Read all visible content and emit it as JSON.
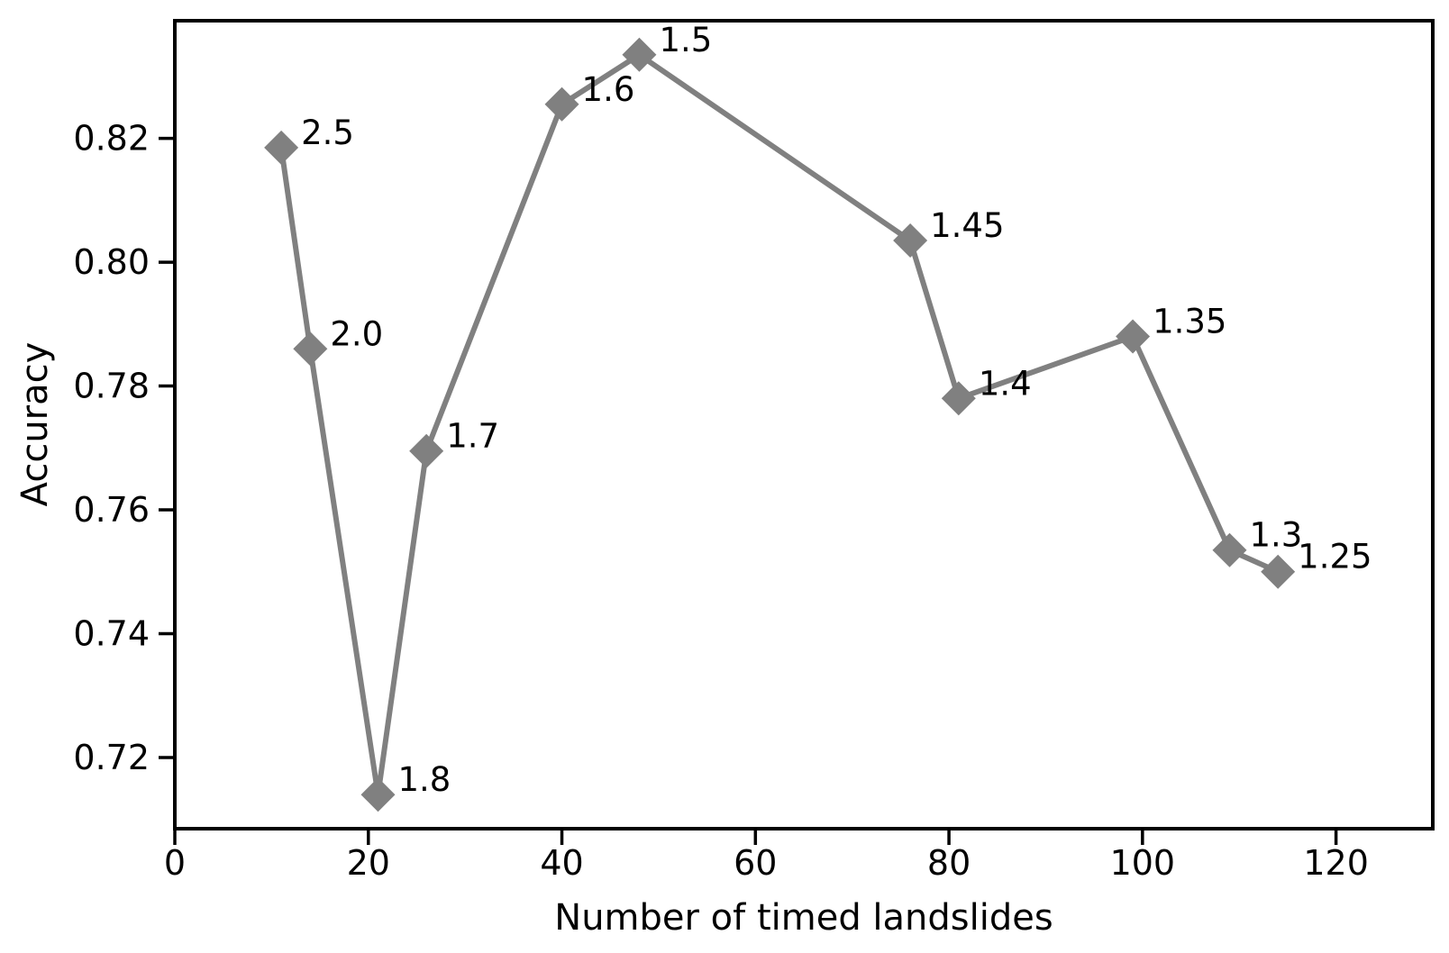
{
  "figure": {
    "background_color": "#ffffff",
    "text_color": "#000000",
    "spine_color": "#000000"
  },
  "chart_data": {
    "type": "line",
    "title": "",
    "xlabel": "Number of timed landslides",
    "ylabel": "Accuracy",
    "grid": false,
    "legend": "none",
    "xlim": [
      0,
      130
    ],
    "ylim": [
      0.7085,
      0.839
    ],
    "xticks": {
      "values": [
        0,
        20,
        40,
        60,
        80,
        100,
        120
      ],
      "labels": [
        "0",
        "20",
        "40",
        "60",
        "80",
        "100",
        "120"
      ]
    },
    "yticks": {
      "values": [
        0.72,
        0.74,
        0.76,
        0.78,
        0.8,
        0.82
      ],
      "labels": [
        "0.72",
        "0.74",
        "0.76",
        "0.78",
        "0.80",
        "0.82"
      ]
    },
    "series": [
      {
        "name": "accuracy-vs-timed-landslides",
        "color": "#808080",
        "marker": "diamond",
        "points": [
          {
            "x": 11,
            "y": 0.8185,
            "label": "2.5"
          },
          {
            "x": 14,
            "y": 0.786,
            "label": "2.0"
          },
          {
            "x": 21,
            "y": 0.714,
            "label": "1.8"
          },
          {
            "x": 26,
            "y": 0.7695,
            "label": "1.7"
          },
          {
            "x": 40,
            "y": 0.8255,
            "label": "1.6"
          },
          {
            "x": 48,
            "y": 0.8335,
            "label": "1.5"
          },
          {
            "x": 76,
            "y": 0.8035,
            "label": "1.45"
          },
          {
            "x": 81,
            "y": 0.778,
            "label": "1.4"
          },
          {
            "x": 99,
            "y": 0.788,
            "label": "1.35"
          },
          {
            "x": 109,
            "y": 0.7535,
            "label": "1.3"
          },
          {
            "x": 114,
            "y": 0.75,
            "label": "1.25"
          }
        ]
      }
    ]
  }
}
